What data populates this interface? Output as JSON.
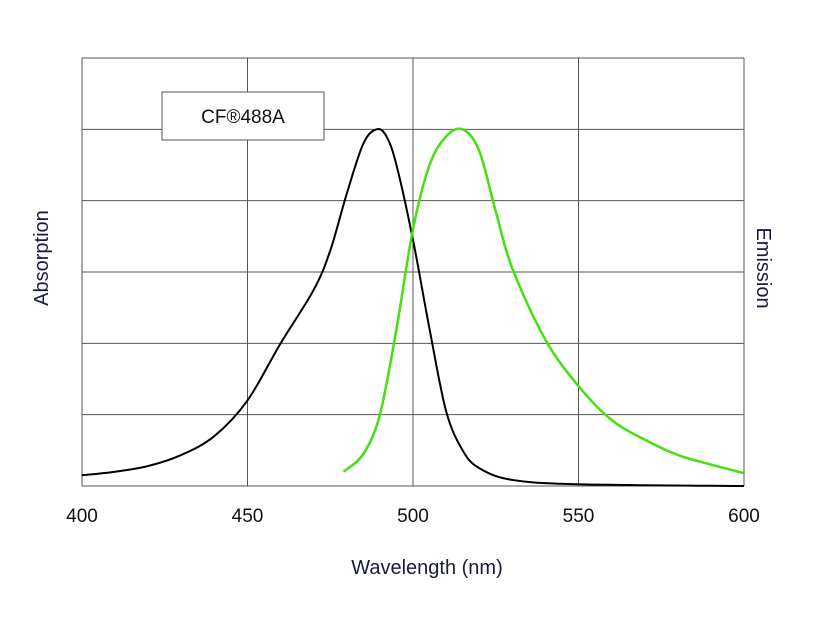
{
  "chart_data": {
    "type": "line",
    "title": "",
    "xlabel": "Wavelength (nm)",
    "ylabel_left": "Absorption",
    "ylabel_right": "Emission",
    "xlim": [
      400,
      600
    ],
    "ylim": [
      0,
      1.2
    ],
    "xticks": [
      400,
      450,
      500,
      550,
      600
    ],
    "xtick_labels": [
      "400",
      "450",
      "500",
      "550",
      "600"
    ],
    "yticks": [
      0,
      0.2,
      0.4,
      0.6,
      0.8,
      1.0,
      1.2
    ],
    "grid": true,
    "legend_label": "CF®488A",
    "legend_position": "top-left",
    "series": [
      {
        "name": "Absorption",
        "color": "#000000",
        "x": [
          400,
          410,
          420,
          430,
          440,
          450,
          460,
          470,
          475,
          480,
          485,
          489,
          492,
          495,
          500,
          505,
          510,
          515,
          520,
          530,
          550,
          600
        ],
        "y": [
          0.03,
          0.04,
          0.056,
          0.087,
          0.14,
          0.24,
          0.4,
          0.55,
          0.66,
          0.82,
          0.96,
          1.0,
          0.98,
          0.9,
          0.69,
          0.44,
          0.21,
          0.1,
          0.05,
          0.017,
          0.005,
          0.0
        ]
      },
      {
        "name": "Emission",
        "color": "#44e010",
        "x": [
          479,
          485,
          490,
          495,
          500,
          505,
          510,
          515,
          520,
          525,
          530,
          540,
          550,
          560,
          570,
          580,
          590,
          600
        ],
        "y": [
          0.04,
          0.09,
          0.2,
          0.44,
          0.72,
          0.9,
          0.98,
          1.0,
          0.94,
          0.77,
          0.61,
          0.41,
          0.28,
          0.185,
          0.13,
          0.087,
          0.06,
          0.036
        ]
      }
    ]
  }
}
